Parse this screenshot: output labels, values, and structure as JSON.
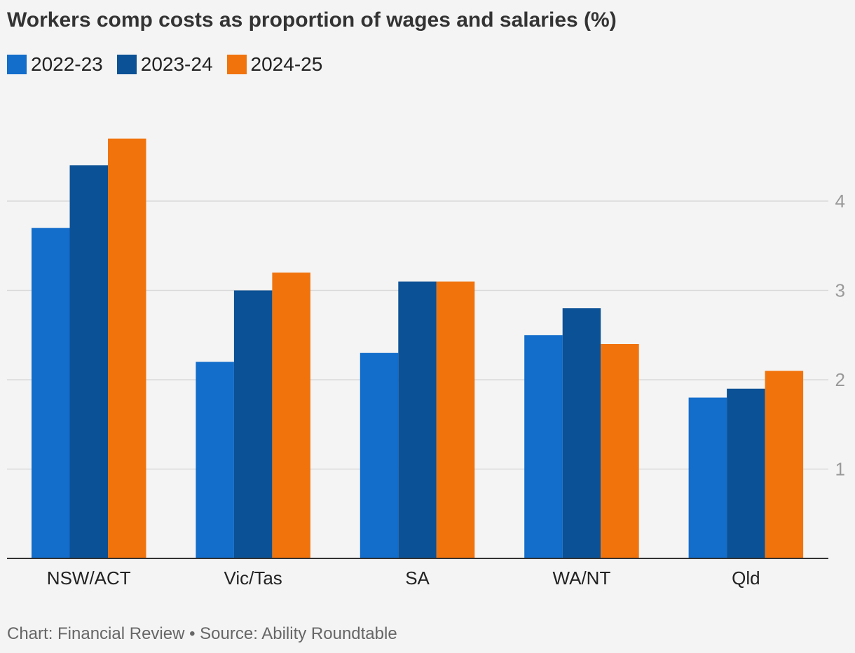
{
  "title": "Workers comp costs as proportion of wages and salaries (%)",
  "footer": "Chart: Financial Review • Source: Ability Roundtable",
  "legend": [
    {
      "label": "2022-23",
      "color": "#126dcb"
    },
    {
      "label": "2023-24",
      "color": "#0b5195"
    },
    {
      "label": "2024-25",
      "color": "#f1730c"
    }
  ],
  "chart_data": {
    "type": "bar",
    "title": "Workers comp costs as proportion of wages and salaries (%)",
    "xlabel": "",
    "ylabel": "",
    "categories": [
      "NSW/ACT",
      "Vic/Tas",
      "SA",
      "WA/NT",
      "Qld"
    ],
    "series": [
      {
        "name": "2022-23",
        "values": [
          3.7,
          2.2,
          2.3,
          2.5,
          1.8
        ]
      },
      {
        "name": "2023-24",
        "values": [
          4.4,
          3.0,
          3.1,
          2.8,
          1.9
        ]
      },
      {
        "name": "2024-25",
        "values": [
          4.7,
          3.2,
          3.1,
          2.4,
          2.1
        ]
      }
    ],
    "ylim": [
      0,
      5
    ],
    "yticks": [
      1,
      2,
      3,
      4
    ],
    "grid": true,
    "y_axis_side": "right",
    "legend_position": "top-left"
  }
}
